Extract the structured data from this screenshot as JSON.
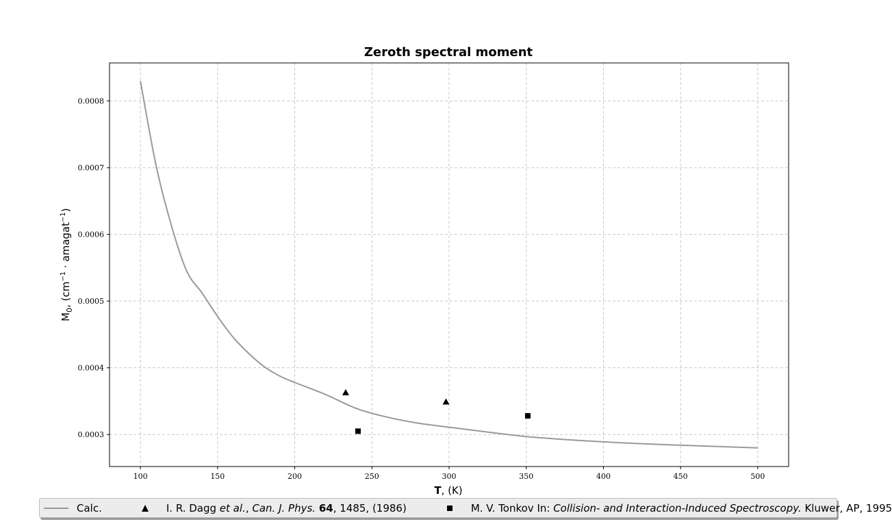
{
  "chart_data": {
    "type": "line",
    "title": "Zeroth spectral moment",
    "xlabel": {
      "main": "T",
      "rest": ", (K)"
    },
    "ylabel": {
      "main": "M",
      "sub": "0",
      "rest_a": ", (cm",
      "sup_a": "−1",
      "mid": " · amagat",
      "sup_b": "−1",
      "rest_b": ")"
    },
    "xlim": [
      80,
      520
    ],
    "ylim": [
      0.000252,
      0.000857
    ],
    "x_ticks": [
      100,
      150,
      200,
      250,
      300,
      350,
      400,
      450,
      500
    ],
    "x_tick_labels": [
      "100",
      "150",
      "200",
      "250",
      "300",
      "350",
      "400",
      "450",
      "500"
    ],
    "y_ticks": [
      0.0003,
      0.0004,
      0.0005,
      0.0006,
      0.0007,
      0.0008
    ],
    "y_tick_labels": [
      "0.0003",
      "0.0004",
      "0.0005",
      "0.0006",
      "0.0007",
      "0.0008"
    ],
    "grid": true,
    "legend_position": "bottom",
    "series": [
      {
        "name": "Calc.",
        "kind": "line",
        "color": "#999999",
        "x": [
          100,
          110,
          120,
          130,
          140,
          150,
          160,
          170,
          180,
          190,
          200,
          220,
          240,
          260,
          280,
          300,
          350,
          400,
          450,
          500
        ],
        "y": [
          0.00083,
          0.000705,
          0.000614,
          0.000545,
          0.000512,
          0.000477,
          0.000446,
          0.000422,
          0.000402,
          0.000388,
          0.000378,
          0.00036,
          0.000339,
          0.000326,
          0.000317,
          0.000311,
          0.000297,
          0.000289,
          0.000284,
          0.00028
        ]
      },
      {
        "name": "Dagg",
        "kind": "scatter",
        "marker": "triangle",
        "color": "#000000",
        "x": [
          233,
          298
        ],
        "y": [
          0.000363,
          0.000349
        ]
      },
      {
        "name": "Tonkov",
        "kind": "scatter",
        "marker": "square",
        "color": "#000000",
        "x": [
          241,
          351
        ],
        "y": [
          0.000305,
          0.000328
        ]
      }
    ]
  },
  "legend": {
    "calc": "Calc.",
    "dagg": {
      "author": "I. R. Dagg ",
      "etal": "et al.",
      "sep1": ", ",
      "journal": "Can. J. Phys.",
      "sep2": " ",
      "volume": "64",
      "rest": ", 1485, (1986)"
    },
    "tonkov": {
      "author": "M. V. Tonkov In: ",
      "book": "Collision- and Interaction-Induced Spectroscopy.",
      "rest": " Kluwer, AP, 1995"
    }
  }
}
